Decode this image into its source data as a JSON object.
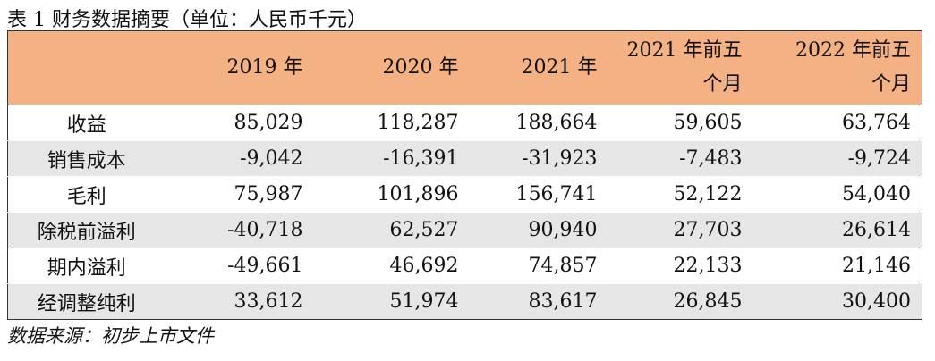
{
  "title": "表 1 财务数据摘要（单位：人民币千元）",
  "table": {
    "header": [
      "",
      "2019 年",
      "2020 年",
      "2021 年",
      "2021 年前五个月",
      "2022 年前五个月"
    ],
    "rows": [
      [
        "收益",
        "85,029",
        "118,287",
        "188,664",
        "59,605",
        "63,764"
      ],
      [
        "销售成本",
        "-9,042",
        "-16,391",
        "-31,923",
        "-7,483",
        "-9,724"
      ],
      [
        "毛利",
        "75,987",
        "101,896",
        "156,741",
        "52,122",
        "54,040"
      ],
      [
        "除税前溢利",
        "-40,718",
        "62,527",
        "90,940",
        "27,703",
        "26,614"
      ],
      [
        "期内溢利",
        "-49,661",
        "46,692",
        "74,857",
        "22,133",
        "21,146"
      ],
      [
        "经调整纯利",
        "33,612",
        "51,974",
        "83,617",
        "26,845",
        "30,400"
      ]
    ]
  },
  "source": "数据来源：初步上市文件"
}
